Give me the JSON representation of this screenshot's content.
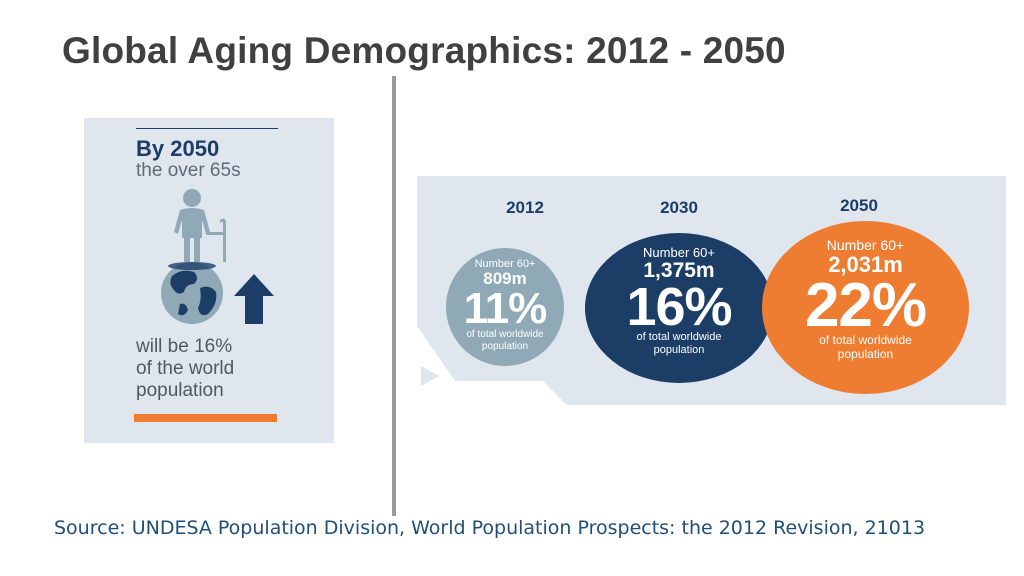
{
  "title": "Global Aging Demographics: 2012 - 2050",
  "source": "Source: UNDESA Population Division, World Population Prospects: the 2012 Revision, 21013",
  "left_panel": {
    "headline": "By 2050",
    "subhead": "the over 65s",
    "caption_lines": [
      "will be 16%",
      "of the world",
      "population"
    ],
    "icons": [
      "elderly-person-with-cane-icon",
      "globe-icon",
      "arrow-up-icon"
    ]
  },
  "right_panel": {
    "items": [
      {
        "year": "2012",
        "label": "Number 60+",
        "value": "809m",
        "percent": "11%",
        "caption": "of total worldwide population",
        "color": "#8fa9b7"
      },
      {
        "year": "2030",
        "label": "Number 60+",
        "value": "1,375m",
        "percent": "16%",
        "caption": "of total worldwide population",
        "color": "#1c3d66"
      },
      {
        "year": "2050",
        "label": "Number 60+",
        "value": "2,031m",
        "percent": "22%",
        "caption": "of total worldwide population",
        "color": "#ee7d31"
      }
    ]
  },
  "colors": {
    "title": "#404040",
    "source": "#1f4e79",
    "navy": "#1c3d66",
    "orange": "#ee7d31",
    "panel_bg": "#dfe6ee"
  }
}
